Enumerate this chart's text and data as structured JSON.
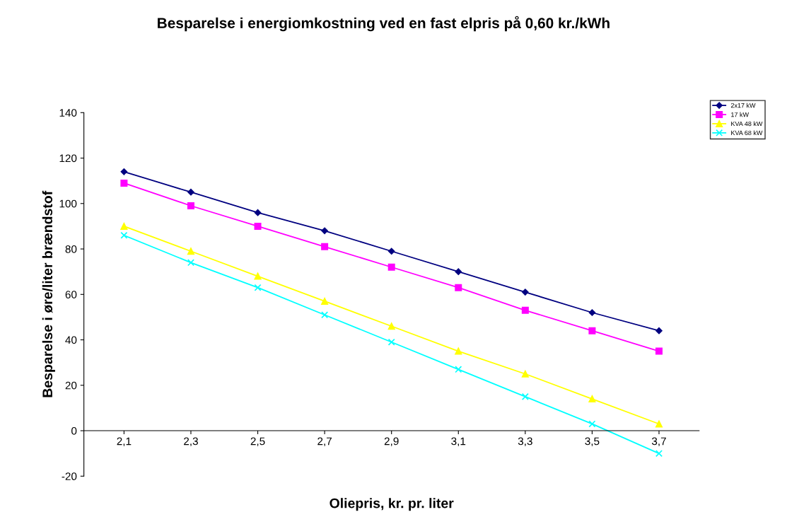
{
  "chart_data": {
    "type": "line",
    "title": "Besparelse i energiomkostning ved en fast elpris på 0,60 kr./kWh",
    "xlabel": "Oliepris, kr. pr. liter",
    "ylabel": "Besparelse i øre/liter brændstof",
    "categories": [
      "2,1",
      "2,3",
      "2,5",
      "2,7",
      "2,9",
      "3,1",
      "3,3",
      "3,5",
      "3,7"
    ],
    "series": [
      {
        "name": "2x17 kW",
        "color": "#000080",
        "marker": "diamond",
        "values": [
          114,
          105,
          96,
          88,
          79,
          70,
          61,
          52,
          44
        ]
      },
      {
        "name": "17 kW",
        "color": "#ff00ff",
        "marker": "square",
        "values": [
          109,
          99,
          90,
          81,
          72,
          63,
          53,
          44,
          35
        ]
      },
      {
        "name": "KVA 48 kW",
        "color": "#ffff00",
        "marker": "triangle",
        "values": [
          90,
          79,
          68,
          57,
          46,
          35,
          25,
          14,
          3
        ]
      },
      {
        "name": "KVA 68 kW",
        "color": "#00ffff",
        "marker": "cross",
        "values": [
          86,
          74,
          63,
          51,
          39,
          27,
          15,
          3,
          -10
        ]
      }
    ],
    "ylim": [
      -20,
      140
    ],
    "yticks": [
      -20,
      0,
      20,
      40,
      60,
      80,
      100,
      120,
      140
    ],
    "grid": false,
    "legend": "top right",
    "line_style": "solid"
  }
}
